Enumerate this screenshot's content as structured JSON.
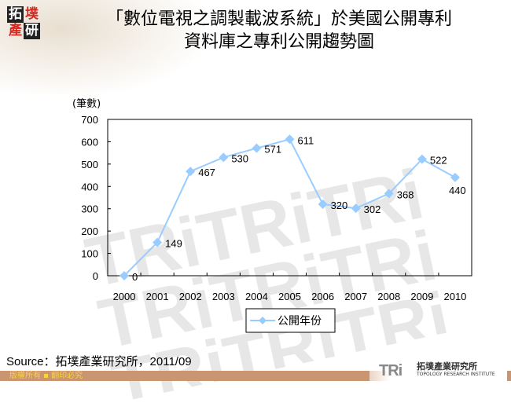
{
  "header": {
    "logo_chars": [
      "拓",
      "墣",
      "產",
      "研"
    ],
    "title_line1": "「數位電視之調製載波系統」於美國公開專利",
    "title_line2": "資料庫之專利公開趨勢圖"
  },
  "chart_data": {
    "type": "line",
    "title": "「數位電視之調製載波系統」於美國公開專利資料庫之專利公開趨勢圖",
    "xlabel": "",
    "ylabel": "(筆數)",
    "categories": [
      "2000",
      "2001",
      "2002",
      "2003",
      "2004",
      "2005",
      "2006",
      "2007",
      "2008",
      "2009",
      "2010"
    ],
    "series": [
      {
        "name": "公開年份",
        "values": [
          0,
          149,
          467,
          530,
          571,
          611,
          320,
          302,
          368,
          522,
          440
        ],
        "color": "#99ccff"
      }
    ],
    "ylim": [
      0,
      700
    ],
    "yticks": [
      0,
      100,
      200,
      300,
      400,
      500,
      600,
      700
    ],
    "grid": false,
    "legend_position": "bottom",
    "data_labels": true
  },
  "footer": {
    "source": "Source：拓墣產業研究所，2011/09",
    "copyright": "版權所有 ▪ 翻印必究",
    "brand_mark": "TRi",
    "brand_cn": "拓墣產業研究所",
    "brand_en": "TOPOLOGY RESEARCH INSTITUTE"
  },
  "colors": {
    "series": "#99ccff",
    "footer_band": "#c99671",
    "footer_text": "#ffd23a",
    "logo_red": "#d8261e"
  }
}
